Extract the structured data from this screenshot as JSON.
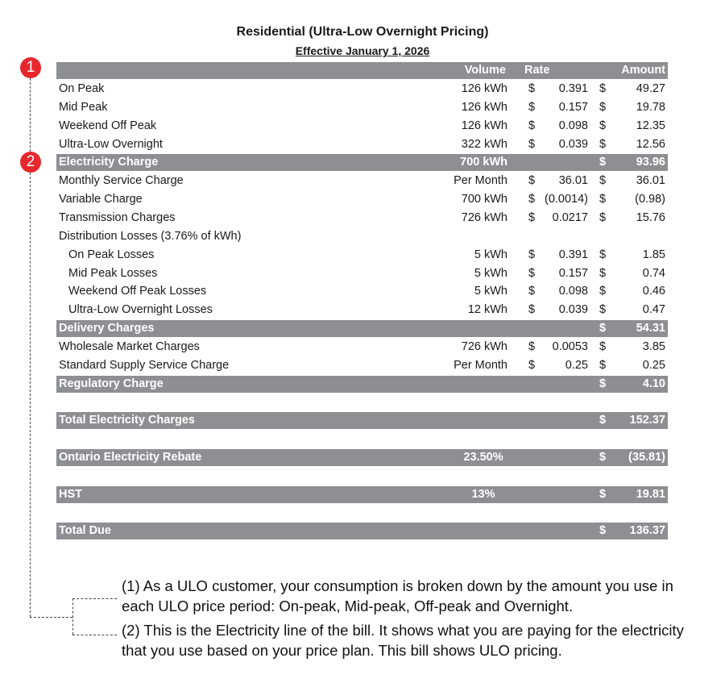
{
  "title": "Residential (Ultra-Low Overnight Pricing)",
  "subtitle": "Effective January 1, 2026",
  "header": {
    "volume": "Volume",
    "rate": "Rate",
    "amount": "Amount"
  },
  "rows": [
    {
      "label": "On Peak",
      "volume": "126 kWh",
      "rate_cur": "$",
      "rate": "0.391",
      "amt_cur": "$",
      "amount": "49.27"
    },
    {
      "label": "Mid Peak",
      "volume": "126 kWh",
      "rate_cur": "$",
      "rate": "0.157",
      "amt_cur": "$",
      "amount": "19.78"
    },
    {
      "label": "Weekend Off Peak",
      "volume": "126 kWh",
      "rate_cur": "$",
      "rate": "0.098",
      "amt_cur": "$",
      "amount": "12.35"
    },
    {
      "label": "Ultra-Low Overnight",
      "volume": "322 kWh",
      "rate_cur": "$",
      "rate": "0.039",
      "amt_cur": "$",
      "amount": "12.56"
    },
    {
      "label": "Electricity Charge",
      "volume": "700 kWh",
      "amt_cur": "$",
      "amount": "93.96",
      "shade": true
    },
    {
      "label": "Monthly Service Charge",
      "volume": "Per Month",
      "rate_cur": "$",
      "rate": "36.01",
      "amt_cur": "$",
      "amount": "36.01"
    },
    {
      "label": "Variable Charge",
      "volume": "700 kWh",
      "rate_cur": "$",
      "rate": "(0.0014)",
      "amt_cur": "$",
      "amount": "(0.98)"
    },
    {
      "label": "Transmission Charges",
      "volume": "726 kWh",
      "rate_cur": "$",
      "rate": "0.0217",
      "amt_cur": "$",
      "amount": "15.76"
    },
    {
      "label": "Distribution Losses (3.76% of kWh)"
    },
    {
      "label": "On Peak Losses",
      "indent": true,
      "volume": "5 kWh",
      "rate_cur": "$",
      "rate": "0.391",
      "amt_cur": "$",
      "amount": "1.85"
    },
    {
      "label": "Mid Peak Losses",
      "indent": true,
      "volume": "5 kWh",
      "rate_cur": "$",
      "rate": "0.157",
      "amt_cur": "$",
      "amount": "0.74"
    },
    {
      "label": "Weekend Off Peak Losses",
      "indent": true,
      "volume": "5 kWh",
      "rate_cur": "$",
      "rate": "0.098",
      "amt_cur": "$",
      "amount": "0.46"
    },
    {
      "label": "Ultra-Low Overnight Losses",
      "indent": true,
      "volume": "12 kWh",
      "rate_cur": "$",
      "rate": "0.039",
      "amt_cur": "$",
      "amount": "0.47"
    },
    {
      "label": "Delivery Charges",
      "amt_cur": "$",
      "amount": "54.31",
      "shade": true
    },
    {
      "label": "Wholesale Market Charges",
      "volume": "726 kWh",
      "rate_cur": "$",
      "rate": "0.0053",
      "amt_cur": "$",
      "amount": "3.85"
    },
    {
      "label": "Standard Supply Service Charge",
      "volume": "Per Month",
      "rate_cur": "$",
      "rate": "0.25",
      "amt_cur": "$",
      "amount": "0.25"
    },
    {
      "label": "Regulatory Charge",
      "amt_cur": "$",
      "amount": "4.10",
      "shade": true
    },
    {
      "blank": true
    },
    {
      "label": "Total Electricity Charges",
      "amt_cur": "$",
      "amount": "152.37",
      "shade": true
    },
    {
      "blank": true
    },
    {
      "label": "Ontario Electricity Rebate",
      "volume": "23.50%",
      "center": true,
      "amt_cur": "$",
      "amount": "(35.81)",
      "shade": true
    },
    {
      "blank": true
    },
    {
      "label": "HST",
      "volume": "13%",
      "center": true,
      "amt_cur": "$",
      "amount": "19.81",
      "shade": true
    },
    {
      "blank": true
    },
    {
      "label": "Total  Due",
      "amt_cur": "$",
      "amount": "136.37",
      "shade": true
    }
  ],
  "badges": [
    "1",
    "2"
  ],
  "badge_color": "#e8272d",
  "shade_color": "#8e8f93",
  "notes": [
    "(1) As a ULO customer, your consumption is broken down by the amount you use in each ULO price period: On-peak, Mid-peak, Off-peak and Overnight.",
    "(2) This is the Electricity line of the bill. It shows what you are paying for the electricity that you use based on your price plan. This bill shows ULO pricing."
  ]
}
